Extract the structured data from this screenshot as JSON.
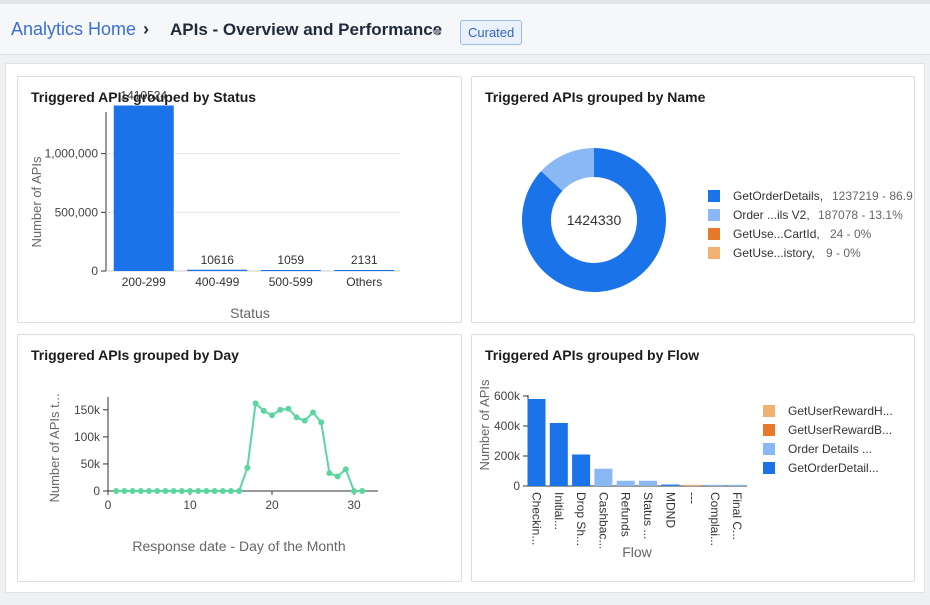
{
  "header": {
    "home_label": "Analytics Home",
    "separator": "›",
    "title": "APIs - Overview and Performance",
    "badge": "Curated"
  },
  "panels": {
    "status": {
      "title": "Triggered APIs grouped by Status",
      "chart_data": {
        "type": "bar",
        "categories": [
          "200-299",
          "400-499",
          "500-599",
          "Others"
        ],
        "values": [
          1410524,
          10616,
          1059,
          2131
        ],
        "data_labels": [
          "1410524",
          "10616",
          "1059",
          "2131"
        ],
        "xlabel": "Status",
        "ylabel": "Number of APIs",
        "yticks": [
          "0",
          "500,000",
          "1,000,000"
        ],
        "ylim": [
          0,
          1500000
        ],
        "color": "#1a73e8"
      }
    },
    "name": {
      "title": "Triggered APIs grouped by Name",
      "center_label": "1424330",
      "chart_data": {
        "type": "pie",
        "total": 1424330,
        "slices": [
          {
            "label": "GetOrderDetails",
            "value": 1237219,
            "legend_text": "1237219 - 86.9",
            "color": "#1a73e8"
          },
          {
            "label": "Order ...ils V2",
            "value": 187078,
            "legend_text": "187078 - 13.1%",
            "color": "#8ab8f5"
          },
          {
            "label": "GetUse...CartId",
            "value": 24,
            "legend_text": "24 - 0%",
            "color": "#e8782a"
          },
          {
            "label": "GetUse...istory",
            "value": 9,
            "legend_text": "9 - 0%",
            "color": "#f1b173"
          }
        ]
      }
    },
    "day": {
      "title": "Triggered APIs grouped by Day",
      "chart_data": {
        "type": "line",
        "x": [
          1,
          2,
          3,
          4,
          5,
          6,
          7,
          8,
          9,
          10,
          11,
          12,
          13,
          14,
          15,
          16,
          17,
          18,
          19,
          20,
          21,
          22,
          23,
          24,
          25,
          26,
          27,
          28,
          29,
          30,
          31
        ],
        "values": [
          0,
          0,
          0,
          0,
          0,
          0,
          0,
          0,
          0,
          0,
          0,
          0,
          0,
          0,
          0,
          0,
          43000,
          162000,
          148000,
          140000,
          150000,
          152000,
          136000,
          130000,
          145000,
          127000,
          33000,
          27000,
          40000,
          0,
          0
        ],
        "xlabel": "Response date - Day of the Month",
        "ylabel": "Number of APIs t...",
        "xticks": [
          "0",
          "10",
          "20",
          "30"
        ],
        "yticks": [
          "0",
          "50k",
          "100k",
          "150k"
        ],
        "xlim": [
          0,
          33
        ],
        "ylim": [
          0,
          175000
        ],
        "color": "#5cd6a0"
      }
    },
    "flow": {
      "title": "Triggered APIs grouped by Flow",
      "chart_data": {
        "type": "bar",
        "stacked": true,
        "categories": [
          "Checkin...",
          "Initial...",
          "Drop Sh...",
          "Cashbac...",
          "Refunds",
          "Status ...",
          "MDND",
          "---",
          "Complai...",
          "Final C..."
        ],
        "series": [
          {
            "name": "GetOrderDetail...",
            "color": "#1a73e8",
            "values": [
              580000,
              420000,
              210000,
              0,
              0,
              0,
              5000,
              0,
              0,
              0
            ]
          },
          {
            "name": "Order Details ...",
            "color": "#8ab8f5",
            "values": [
              0,
              0,
              0,
              115000,
              35000,
              35000,
              5000,
              0,
              3000,
              2000
            ]
          },
          {
            "name": "GetUserRewardB...",
            "color": "#e8782a",
            "values": [
              0,
              0,
              0,
              0,
              0,
              0,
              0,
              0,
              0,
              0
            ]
          },
          {
            "name": "GetUserRewardH...",
            "color": "#f1b173",
            "values": [
              0,
              0,
              0,
              0,
              0,
              0,
              0,
              1000,
              0,
              0
            ]
          }
        ],
        "legend_order": [
          "GetUserRewardH...",
          "GetUserRewardB...",
          "Order Details ...",
          "GetOrderDetail..."
        ],
        "xlabel": "Flow",
        "ylabel": "Number of APIs",
        "yticks": [
          "0",
          "200k",
          "400k",
          "600k"
        ],
        "ylim": [
          0,
          620000
        ]
      }
    }
  }
}
